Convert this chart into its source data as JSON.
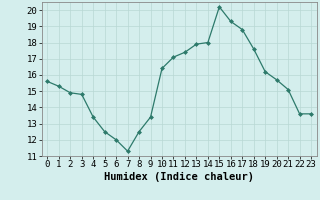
{
  "x": [
    0,
    1,
    2,
    3,
    4,
    5,
    6,
    7,
    8,
    9,
    10,
    11,
    12,
    13,
    14,
    15,
    16,
    17,
    18,
    19,
    20,
    21,
    22,
    23
  ],
  "y": [
    15.6,
    15.3,
    14.9,
    14.8,
    13.4,
    12.5,
    12.0,
    11.3,
    12.5,
    13.4,
    16.4,
    17.1,
    17.4,
    17.9,
    18.0,
    20.2,
    19.3,
    18.8,
    17.6,
    16.2,
    15.7,
    15.1,
    13.6,
    13.6
  ],
  "xlabel": "Humidex (Indice chaleur)",
  "xlim": [
    -0.5,
    23.5
  ],
  "ylim": [
    11,
    20.5
  ],
  "yticks": [
    11,
    12,
    13,
    14,
    15,
    16,
    17,
    18,
    19,
    20
  ],
  "xticks": [
    0,
    1,
    2,
    3,
    4,
    5,
    6,
    7,
    8,
    9,
    10,
    11,
    12,
    13,
    14,
    15,
    16,
    17,
    18,
    19,
    20,
    21,
    22,
    23
  ],
  "line_color": "#2d7a6b",
  "marker_color": "#2d7a6b",
  "bg_color": "#d4eeed",
  "grid_color": "#b8d8d4",
  "font_color": "#000000",
  "xlabel_fontsize": 7.5,
  "tick_fontsize": 6.5
}
